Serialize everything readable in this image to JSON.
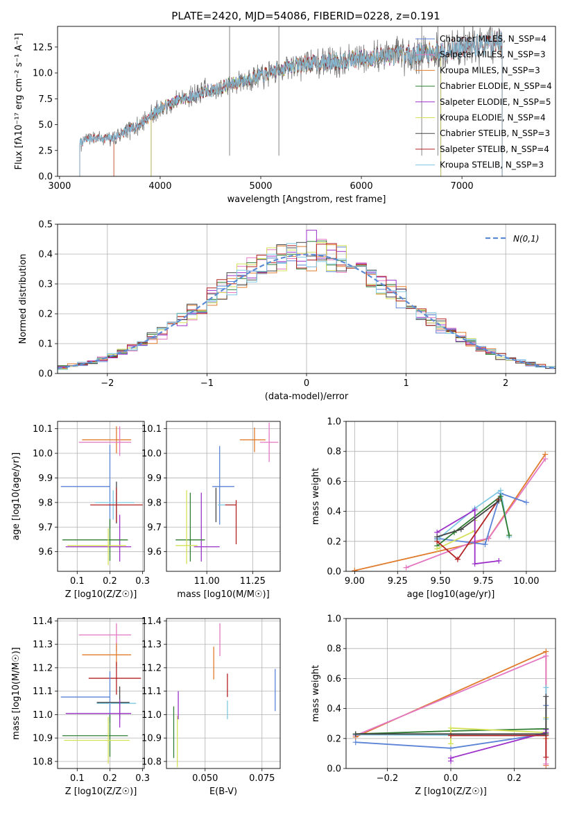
{
  "figure_title": "PLATE=2420, MJD=54086, FIBERID=0228, z=0.191",
  "chart_data": [
    {
      "id": "spectrum",
      "type": "line",
      "xlabel": "wavelength [Angstrom, rest frame]",
      "ylabel": "Flux [fλ10⁻¹⁷ erg cm⁻² s⁻¹ A⁻¹]",
      "xlim": [
        2980,
        7930
      ],
      "ylim": [
        0,
        14.5
      ],
      "xticks": [
        3000,
        4000,
        5000,
        6000,
        7000
      ],
      "yticks": [
        0.0,
        2.5,
        5.0,
        7.5,
        10.0,
        12.5
      ],
      "grid": false,
      "legend_position": "top-right",
      "series": [
        {
          "name": "Chabrier MILES, N_SSP=4",
          "color": "#5b83d6",
          "start": 3540,
          "end": 7400
        },
        {
          "name": "Salpeter MILES, N_SSP=3",
          "color": "#e377c2",
          "start": 3540,
          "end": 7400
        },
        {
          "name": "Kroupa MILES, N_SSP=3",
          "color": "#e07b2c",
          "start": 3540,
          "end": 7400
        },
        {
          "name": "Chabrier ELODIE, N_SSP=4",
          "color": "#2e7d32",
          "start": 3910,
          "end": 6790
        },
        {
          "name": "Salpeter ELODIE, N_SSP=5",
          "color": "#9b30c8",
          "start": 3910,
          "end": 6790
        },
        {
          "name": "Kroupa ELODIE, N_SSP=4",
          "color": "#d4e157",
          "start": 3910,
          "end": 6790
        },
        {
          "name": "Chabrier STELIB, N_SSP=3",
          "color": "#444444",
          "start": 3200,
          "end": 7400
        },
        {
          "name": "Salpeter STELIB, N_SSP=4",
          "color": "#b22222",
          "start": 3200,
          "end": 7400
        },
        {
          "name": "Kroupa STELIB, N_SSP=3",
          "color": "#7ec8e3",
          "start": 3200,
          "end": 7400
        }
      ],
      "continuum": {
        "x": [
          3200,
          3300,
          3500,
          3800,
          4000,
          4200,
          4500,
          4800,
          5100,
          5300,
          5600,
          5900,
          6200,
          6500,
          6800,
          7100,
          7400
        ],
        "y": [
          3.2,
          3.7,
          3.6,
          5.0,
          6.6,
          7.4,
          8.3,
          9.2,
          10.0,
          10.7,
          11.0,
          11.3,
          11.6,
          11.8,
          12.1,
          12.6,
          13.0
        ]
      }
    },
    {
      "id": "residuals",
      "type": "histogram",
      "xlabel": "(data-model)/error",
      "ylabel": "Normed distribution",
      "xlim": [
        -2.5,
        2.5
      ],
      "ylim": [
        0,
        0.5
      ],
      "xticks": [
        -2,
        -1,
        0,
        1,
        2
      ],
      "xtick_labels": [
        "−2",
        "−1",
        "0",
        "1",
        "2"
      ],
      "yticks": [
        0.0,
        0.1,
        0.2,
        0.3,
        0.4,
        0.5
      ],
      "grid": true,
      "legend_position": "top-right",
      "reference_curve": {
        "name": "N(0,1)",
        "color": "#5b8bd4",
        "dash": true,
        "mu": 0,
        "sigma": 1
      },
      "bin_width": 0.1
    },
    {
      "id": "age-vs-Z",
      "type": "errorbar",
      "xlabel": "Z [log10(Z/Z☉)]",
      "ylabel": "age  [log10(age/yr)]",
      "xlim": [
        0.04,
        0.305
      ],
      "ylim": [
        9.52,
        10.13
      ],
      "xticks": [
        0.1,
        0.2,
        0.3
      ],
      "yticks": [
        9.6,
        9.7,
        9.8,
        9.9,
        10.0,
        10.1
      ],
      "grid": true,
      "points": [
        {
          "x": 0.19,
          "xerr": 0.075,
          "y": 10.055,
          "yerr": 0.005,
          "color": "#e07b2c"
        },
        {
          "x": 0.22,
          "xerr": 0.0,
          "y": 10.055,
          "yerr": 0.055,
          "color": "#e07b2c"
        },
        {
          "x": 0.185,
          "xerr": 0.08,
          "y": 10.045,
          "yerr": 0.005,
          "color": "#e377c2"
        },
        {
          "x": 0.23,
          "xerr": 0.0,
          "y": 10.05,
          "yerr": 0.06,
          "color": "#e377c2"
        },
        {
          "x": 0.125,
          "xerr": 0.075,
          "y": 9.865,
          "yerr": 0.005,
          "color": "#5b83d6"
        },
        {
          "x": 0.2,
          "xerr": 0.0,
          "y": 9.865,
          "yerr": 0.17,
          "color": "#5b83d6"
        },
        {
          "x": 0.22,
          "xerr": 0.0,
          "y": 9.8,
          "yerr": 0.085,
          "color": "#444444"
        },
        {
          "x": 0.215,
          "xerr": 0.06,
          "y": 9.8,
          "yerr": 0.005,
          "color": "#7ec8e3"
        },
        {
          "x": 0.21,
          "xerr": 0.0,
          "y": 9.79,
          "yerr": 0.06,
          "color": "#7ec8e3"
        },
        {
          "x": 0.22,
          "xerr": 0.08,
          "y": 9.79,
          "yerr": 0.005,
          "color": "#b22222"
        },
        {
          "x": 0.22,
          "xerr": 0.0,
          "y": 9.79,
          "yerr": 0.07,
          "color": "#b22222"
        },
        {
          "x": 0.23,
          "xerr": 0.0,
          "y": 9.655,
          "yerr": 0.095,
          "color": "#9b30c8"
        },
        {
          "x": 0.155,
          "xerr": 0.1,
          "y": 9.648,
          "yerr": 0.005,
          "color": "#2e7d32"
        },
        {
          "x": 0.2,
          "xerr": 0.0,
          "y": 9.648,
          "yerr": 0.085,
          "color": "#2e7d32"
        },
        {
          "x": 0.165,
          "xerr": 0.1,
          "y": 9.62,
          "yerr": 0.005,
          "color": "#9b30c8"
        },
        {
          "x": 0.195,
          "xerr": 0.0,
          "y": 9.62,
          "yerr": 0.075,
          "color": "#d4e157"
        },
        {
          "x": 0.16,
          "xerr": 0.09,
          "y": 9.625,
          "yerr": 0.005,
          "color": "#d4e157"
        }
      ]
    },
    {
      "id": "age-vs-mass",
      "type": "errorbar",
      "xlabel": "mass [log10(M/M☉)]",
      "ylabel": "",
      "xlim": [
        10.78,
        11.4
      ],
      "ylim": [
        9.52,
        10.13
      ],
      "xticks": [
        11.0,
        11.25
      ],
      "xtick_labels": [
        "11.00",
        "11.25"
      ],
      "yticks": [
        9.6,
        9.7,
        9.8,
        9.9,
        10.0,
        10.1
      ],
      "grid": true,
      "points": [
        {
          "x": 11.26,
          "xerr": 0.0,
          "y": 10.055,
          "yerr": 0.05,
          "color": "#e07b2c"
        },
        {
          "x": 11.25,
          "xerr": 0.07,
          "y": 10.055,
          "yerr": 0.005,
          "color": "#e07b2c"
        },
        {
          "x": 11.34,
          "xerr": 0.05,
          "y": 10.045,
          "yerr": 0.005,
          "color": "#e377c2"
        },
        {
          "x": 11.34,
          "xerr": 0.0,
          "y": 10.045,
          "yerr": 0.08,
          "color": "#e377c2"
        },
        {
          "x": 11.07,
          "xerr": 0.0,
          "y": 9.87,
          "yerr": 0.16,
          "color": "#5b83d6"
        },
        {
          "x": 11.09,
          "xerr": 0.06,
          "y": 9.865,
          "yerr": 0.005,
          "color": "#5b83d6"
        },
        {
          "x": 11.05,
          "xerr": 0.0,
          "y": 9.79,
          "yerr": 0.07,
          "color": "#444444"
        },
        {
          "x": 11.1,
          "xerr": 0.04,
          "y": 9.79,
          "yerr": 0.005,
          "color": "#7ec8e3"
        },
        {
          "x": 11.16,
          "xerr": 0.0,
          "y": 9.72,
          "yerr": 0.09,
          "color": "#b22222"
        },
        {
          "x": 11.13,
          "xerr": 0.03,
          "y": 9.79,
          "yerr": 0.005,
          "color": "#b22222"
        },
        {
          "x": 10.97,
          "xerr": 0.0,
          "y": 9.7,
          "yerr": 0.14,
          "color": "#9b30c8"
        },
        {
          "x": 11.0,
          "xerr": 0.07,
          "y": 9.62,
          "yerr": 0.005,
          "color": "#9b30c8"
        },
        {
          "x": 10.91,
          "xerr": 0.08,
          "y": 9.648,
          "yerr": 0.005,
          "color": "#2e7d32"
        },
        {
          "x": 10.91,
          "xerr": 0.0,
          "y": 9.7,
          "yerr": 0.14,
          "color": "#2e7d32"
        },
        {
          "x": 10.89,
          "xerr": 0.0,
          "y": 9.7,
          "yerr": 0.15,
          "color": "#d4e157"
        },
        {
          "x": 10.89,
          "xerr": 0.06,
          "y": 9.625,
          "yerr": 0.005,
          "color": "#d4e157"
        }
      ]
    },
    {
      "id": "weight-vs-age",
      "type": "line",
      "xlabel": "age  [log10(age/yr)]",
      "ylabel": "mass weight",
      "xlim": [
        8.95,
        10.17
      ],
      "ylim": [
        0,
        1
      ],
      "xticks": [
        9.0,
        9.25,
        9.5,
        9.75,
        10.0
      ],
      "xtick_labels": [
        "9.00",
        "9.25",
        "9.50",
        "9.75",
        "10.00"
      ],
      "yticks": [
        0.0,
        0.2,
        0.4,
        0.6,
        0.8,
        1.0
      ],
      "grid": true,
      "series": [
        {
          "color": "#e07b2c",
          "x": [
            9.0,
            9.7,
            9.78,
            10.11
          ],
          "y": [
            0.005,
            0.19,
            0.22,
            0.78
          ]
        },
        {
          "color": "#e377c2",
          "x": [
            9.3,
            9.7,
            9.78,
            10.11
          ],
          "y": [
            0.025,
            0.2,
            0.22,
            0.75
          ]
        },
        {
          "color": "#5b83d6",
          "x": [
            9.48,
            9.76,
            9.85,
            10.0
          ],
          "y": [
            0.22,
            0.18,
            0.52,
            0.46
          ]
        },
        {
          "color": "#7ec8e3",
          "x": [
            9.48,
            9.7,
            9.85,
            9.9
          ],
          "y": [
            0.21,
            0.42,
            0.54,
            0.23
          ]
        },
        {
          "color": "#2e7d32",
          "x": [
            9.48,
            9.58,
            9.85,
            9.9
          ],
          "y": [
            0.17,
            0.26,
            0.5,
            0.24
          ]
        },
        {
          "color": "#d4e157",
          "x": [
            9.48,
            9.7,
            9.7
          ],
          "y": [
            0.15,
            0.27,
            0.34
          ]
        },
        {
          "color": "#9b30c8",
          "x": [
            9.48,
            9.7,
            9.7,
            9.84
          ],
          "y": [
            0.26,
            0.41,
            0.05,
            0.07
          ]
        },
        {
          "color": "#b22222",
          "x": [
            9.48,
            9.6,
            9.84
          ],
          "y": [
            0.2,
            0.08,
            0.48
          ]
        },
        {
          "color": "#444444",
          "x": [
            9.48,
            9.62,
            9.84
          ],
          "y": [
            0.23,
            0.28,
            0.47
          ]
        }
      ]
    },
    {
      "id": "mass-vs-Z",
      "type": "errorbar",
      "xlabel": "Z [log10(Z/Z☉)]",
      "ylabel": "mass [log10(M/M☉)]",
      "xlim": [
        0.04,
        0.305
      ],
      "ylim": [
        10.77,
        11.41
      ],
      "xticks": [
        0.1,
        0.2,
        0.3
      ],
      "yticks": [
        10.8,
        10.9,
        11.0,
        11.1,
        11.2,
        11.3,
        11.4
      ],
      "grid": true,
      "points": [
        {
          "x": 0.185,
          "xerr": 0.08,
          "y": 11.34,
          "yerr": 0.005,
          "color": "#e377c2"
        },
        {
          "x": 0.22,
          "xerr": 0.0,
          "y": 11.33,
          "yerr": 0.06,
          "color": "#e377c2"
        },
        {
          "x": 0.19,
          "xerr": 0.075,
          "y": 11.255,
          "yerr": 0.005,
          "color": "#e07b2c"
        },
        {
          "x": 0.22,
          "xerr": 0.0,
          "y": 11.255,
          "yerr": 0.05,
          "color": "#e07b2c"
        },
        {
          "x": 0.215,
          "xerr": 0.08,
          "y": 11.155,
          "yerr": 0.005,
          "color": "#b22222"
        },
        {
          "x": 0.22,
          "xerr": 0.0,
          "y": 11.155,
          "yerr": 0.07,
          "color": "#b22222"
        },
        {
          "x": 0.125,
          "xerr": 0.075,
          "y": 11.075,
          "yerr": 0.005,
          "color": "#5b83d6"
        },
        {
          "x": 0.2,
          "xerr": 0.0,
          "y": 11.075,
          "yerr": 0.11,
          "color": "#5b83d6"
        },
        {
          "x": 0.22,
          "xerr": 0.06,
          "y": 11.048,
          "yerr": 0.005,
          "color": "#7ec8e3"
        },
        {
          "x": 0.21,
          "xerr": 0.05,
          "y": 11.052,
          "yerr": 0.005,
          "color": "#444444"
        },
        {
          "x": 0.23,
          "xerr": 0.0,
          "y": 11.05,
          "yerr": 0.07,
          "color": "#444444"
        },
        {
          "x": 0.165,
          "xerr": 0.1,
          "y": 11.005,
          "yerr": 0.005,
          "color": "#9b30c8"
        },
        {
          "x": 0.23,
          "xerr": 0.0,
          "y": 11.005,
          "yerr": 0.06,
          "color": "#9b30c8"
        },
        {
          "x": 0.155,
          "xerr": 0.1,
          "y": 10.91,
          "yerr": 0.005,
          "color": "#2e7d32"
        },
        {
          "x": 0.2,
          "xerr": 0.0,
          "y": 10.91,
          "yerr": 0.09,
          "color": "#2e7d32"
        },
        {
          "x": 0.16,
          "xerr": 0.1,
          "y": 10.89,
          "yerr": 0.005,
          "color": "#d4e157"
        },
        {
          "x": 0.195,
          "xerr": 0.0,
          "y": 10.89,
          "yerr": 0.1,
          "color": "#d4e157"
        }
      ]
    },
    {
      "id": "mass-vs-EBV",
      "type": "errorbar",
      "xlabel": "E(B-V)",
      "ylabel": "",
      "xlim": [
        0.033,
        0.083
      ],
      "ylim": [
        10.77,
        11.41
      ],
      "xticks": [
        0.05,
        0.075
      ],
      "xtick_labels": [
        "0.050",
        "0.075"
      ],
      "yticks": [
        10.8,
        10.9,
        11.0,
        11.1,
        11.2,
        11.3,
        11.4
      ],
      "grid": true,
      "points": [
        {
          "x": 0.0362,
          "xerr": 0,
          "y": 10.925,
          "yerr": 0.11,
          "color": "#2e7d32"
        },
        {
          "x": 0.0378,
          "xerr": 0,
          "y": 10.885,
          "yerr": 0.11,
          "color": "#d4e157"
        },
        {
          "x": 0.0382,
          "xerr": 0,
          "y": 11.04,
          "yerr": 0.06,
          "color": "#9b30c8"
        },
        {
          "x": 0.0538,
          "xerr": 0,
          "y": 11.22,
          "yerr": 0.07,
          "color": "#e07b2c"
        },
        {
          "x": 0.0565,
          "xerr": 0,
          "y": 11.32,
          "yerr": 0.07,
          "color": "#e377c2"
        },
        {
          "x": 0.0598,
          "xerr": 0,
          "y": 11.125,
          "yerr": 0.05,
          "color": "#b22222"
        },
        {
          "x": 0.0598,
          "xerr": 0,
          "y": 11.02,
          "yerr": 0.04,
          "color": "#7ec8e3"
        },
        {
          "x": 0.0808,
          "xerr": 0,
          "y": 11.105,
          "yerr": 0.09,
          "color": "#5b83d6"
        }
      ]
    },
    {
      "id": "weight-vs-Z",
      "type": "line",
      "xlabel": "Z [log10(Z/Z☉)]",
      "ylabel": "mass weight",
      "xlim": [
        -0.33,
        0.33
      ],
      "ylim": [
        0,
        1
      ],
      "xticks": [
        -0.2,
        0.0,
        0.2
      ],
      "xtick_labels": [
        "−0.2",
        "0.0",
        "0.2"
      ],
      "yticks": [
        0.0,
        0.2,
        0.4,
        0.6,
        0.8,
        1.0
      ],
      "grid": true,
      "series": [
        {
          "color": "#e07b2c",
          "x": [
            -0.3,
            0.3,
            0.3,
            0.3
          ],
          "y": [
            0.21,
            0.78,
            0.02,
            0.2
          ]
        },
        {
          "color": "#e377c2",
          "x": [
            -0.3,
            0.3,
            0.3
          ],
          "y": [
            0.22,
            0.75,
            0.03
          ]
        },
        {
          "color": "#5b83d6",
          "x": [
            -0.3,
            0.0,
            0.3,
            0.3
          ],
          "y": [
            0.175,
            0.135,
            0.23,
            0.42
          ]
        },
        {
          "color": "#7ec8e3",
          "x": [
            -0.3,
            0.3,
            0.3,
            0.3
          ],
          "y": [
            0.225,
            0.22,
            0.54,
            0.33
          ]
        },
        {
          "color": "#2e7d32",
          "x": [
            -0.3,
            0.0,
            0.3,
            0.3
          ],
          "y": [
            0.23,
            0.25,
            0.265,
            0.23
          ]
        },
        {
          "color": "#d4e157",
          "x": [
            0.0,
            0.0,
            0.3,
            0.3
          ],
          "y": [
            0.165,
            0.27,
            0.24,
            0.34
          ]
        },
        {
          "color": "#9b30c8",
          "x": [
            0.0,
            0.0,
            0.3,
            0.3
          ],
          "y": [
            0.05,
            0.07,
            0.24,
            0.26
          ]
        },
        {
          "color": "#b22222",
          "x": [
            0.0,
            0.3,
            0.3
          ],
          "y": [
            0.22,
            0.22,
            0.075
          ]
        },
        {
          "color": "#444444",
          "x": [
            -0.3,
            0.3,
            0.3
          ],
          "y": [
            0.23,
            0.23,
            0.48
          ]
        }
      ]
    }
  ]
}
